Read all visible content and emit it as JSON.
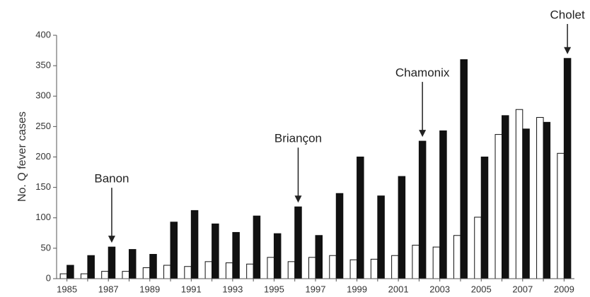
{
  "chart_data": {
    "type": "bar",
    "y_label": "No. Q fever cases",
    "categories": [
      "1985",
      null,
      "1987",
      null,
      "1989",
      null,
      "1991",
      null,
      "1993",
      null,
      "1995",
      null,
      "1997",
      null,
      "1999",
      null,
      "2001",
      null,
      "2003",
      null,
      "2005",
      null,
      "2007",
      null,
      "2009"
    ],
    "series": [
      {
        "color": "#ffffff",
        "values": [
          8,
          8,
          12,
          12,
          18,
          22,
          20,
          28,
          26,
          24,
          35,
          28,
          35,
          38,
          31,
          32,
          38,
          55,
          52,
          71,
          101,
          237,
          278,
          265,
          206
        ]
      },
      {
        "color": "#111111",
        "values": [
          22,
          38,
          52,
          48,
          40,
          93,
          112,
          90,
          76,
          103,
          74,
          118,
          71,
          140,
          200,
          136,
          168,
          226,
          243,
          360,
          200,
          268,
          246,
          257,
          362
        ]
      }
    ],
    "ylim": [
      0,
      400
    ],
    "yticks": [
      0,
      50,
      100,
      150,
      200,
      250,
      300,
      350,
      400
    ],
    "annotations": [
      {
        "text": "Banon",
        "x": "1987"
      },
      {
        "text": "Briançon",
        "x": "1996"
      },
      {
        "text": "Chamonix",
        "x": "2002"
      },
      {
        "text": "Cholet",
        "x": "2009"
      }
    ]
  }
}
